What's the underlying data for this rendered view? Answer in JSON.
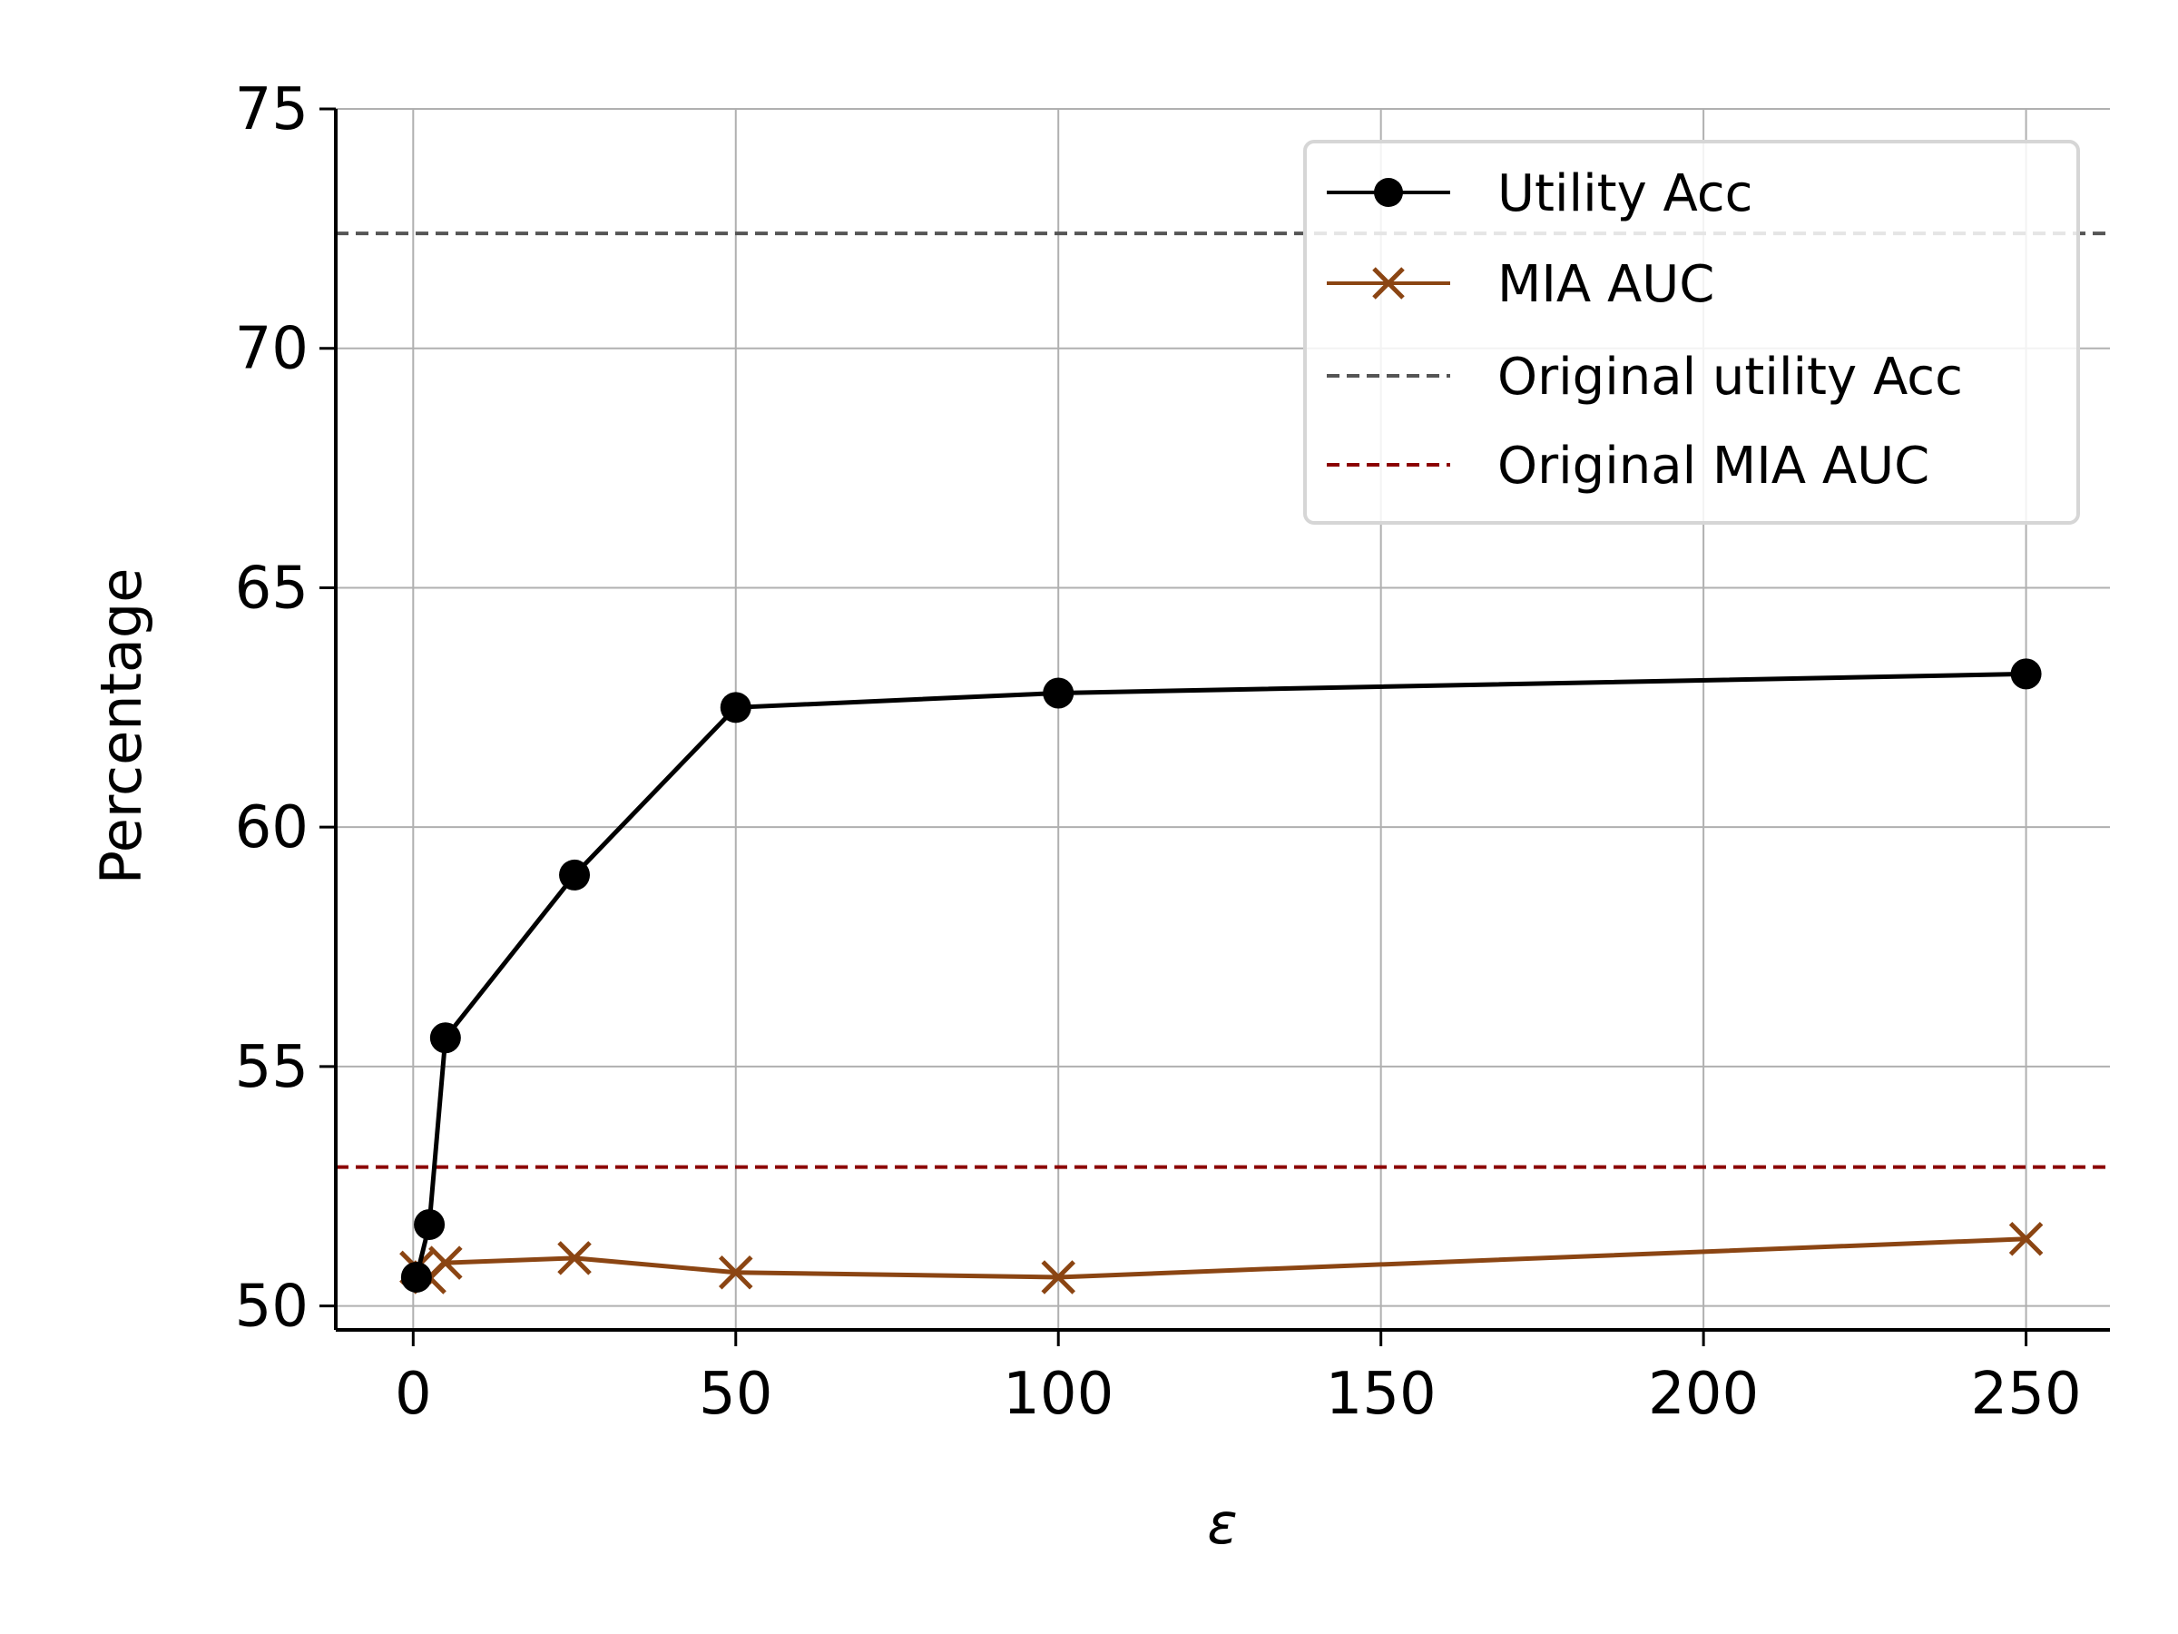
{
  "chart_data": {
    "type": "line",
    "title": "",
    "xlabel": "ε",
    "ylabel": "Percentage",
    "xlim": [
      -12,
      263
    ],
    "ylim": [
      49.5,
      75
    ],
    "x_ticks": [
      0,
      50,
      100,
      150,
      200,
      250
    ],
    "y_ticks": [
      50,
      55,
      60,
      65,
      70,
      75
    ],
    "x_tick_labels": [
      "0",
      "50",
      "100",
      "150",
      "200",
      "250"
    ],
    "y_tick_labels": [
      "50",
      "55",
      "60",
      "65",
      "70",
      "75"
    ],
    "grid": true,
    "legend_position": "upper-right",
    "x": [
      0.5,
      2.5,
      5,
      25,
      50,
      100,
      250
    ],
    "series": [
      {
        "name": "Utility Acc",
        "values": [
          50.6,
          51.7,
          55.6,
          59.0,
          62.5,
          62.8,
          63.2
        ],
        "color": "#000000",
        "marker": "circle"
      },
      {
        "name": "MIA AUC",
        "values": [
          50.8,
          50.6,
          50.9,
          51.0,
          50.7,
          50.6,
          51.4
        ],
        "color": "#8b4513",
        "marker": "x"
      }
    ],
    "reference_lines": [
      {
        "name": "Original utility Acc",
        "y": 72.4,
        "color": "#555555",
        "style": "dashed"
      },
      {
        "name": "Original MIA AUC",
        "y": 52.9,
        "color": "#8b0000",
        "style": "dashed"
      }
    ]
  }
}
